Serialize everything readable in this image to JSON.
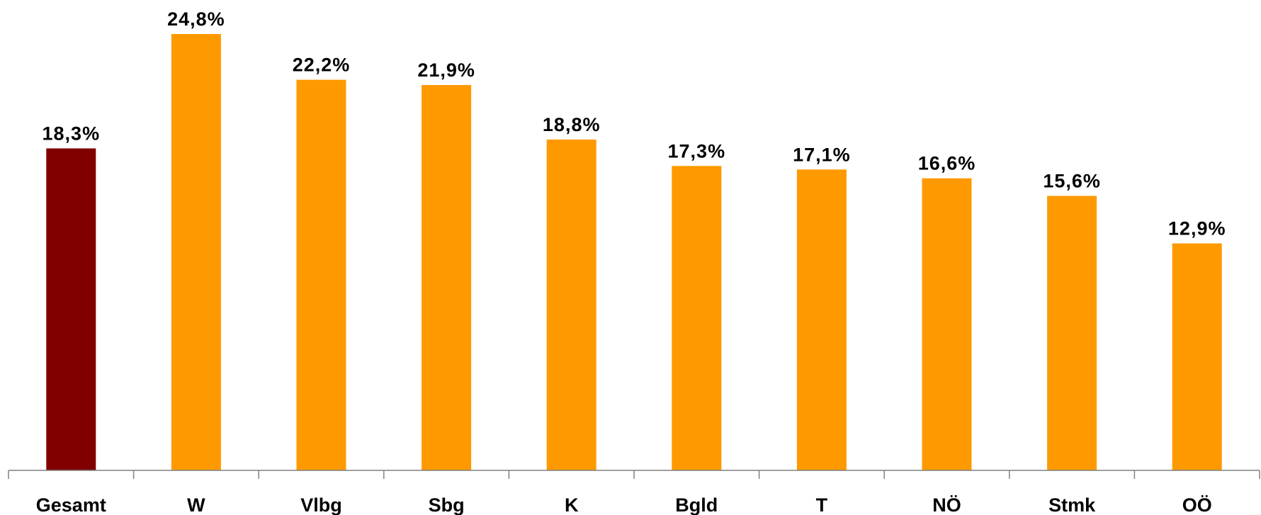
{
  "chart_data": {
    "type": "bar",
    "categories": [
      "Gesamt",
      "W",
      "Vlbg",
      "Sbg",
      "K",
      "Bgld",
      "T",
      "NÖ",
      "Stmk",
      "OÖ"
    ],
    "values": [
      18.3,
      24.8,
      22.2,
      21.9,
      18.8,
      17.3,
      17.1,
      16.6,
      15.6,
      12.9
    ],
    "value_labels": [
      "18,3%",
      "24,8%",
      "22,2%",
      "21,9%",
      "18,8%",
      "17,3%",
      "17,1%",
      "16,6%",
      "15,6%",
      "12,9%"
    ],
    "bar_colors": [
      "#800000",
      "#FF9900",
      "#FF9900",
      "#FF9900",
      "#FF9900",
      "#FF9900",
      "#FF9900",
      "#FF9900",
      "#FF9900",
      "#FF9900"
    ],
    "axis_color": "#808080",
    "title": "",
    "xlabel": "",
    "ylabel": "",
    "ylim": [
      0,
      24.8
    ],
    "grid": false,
    "legend": "none"
  }
}
